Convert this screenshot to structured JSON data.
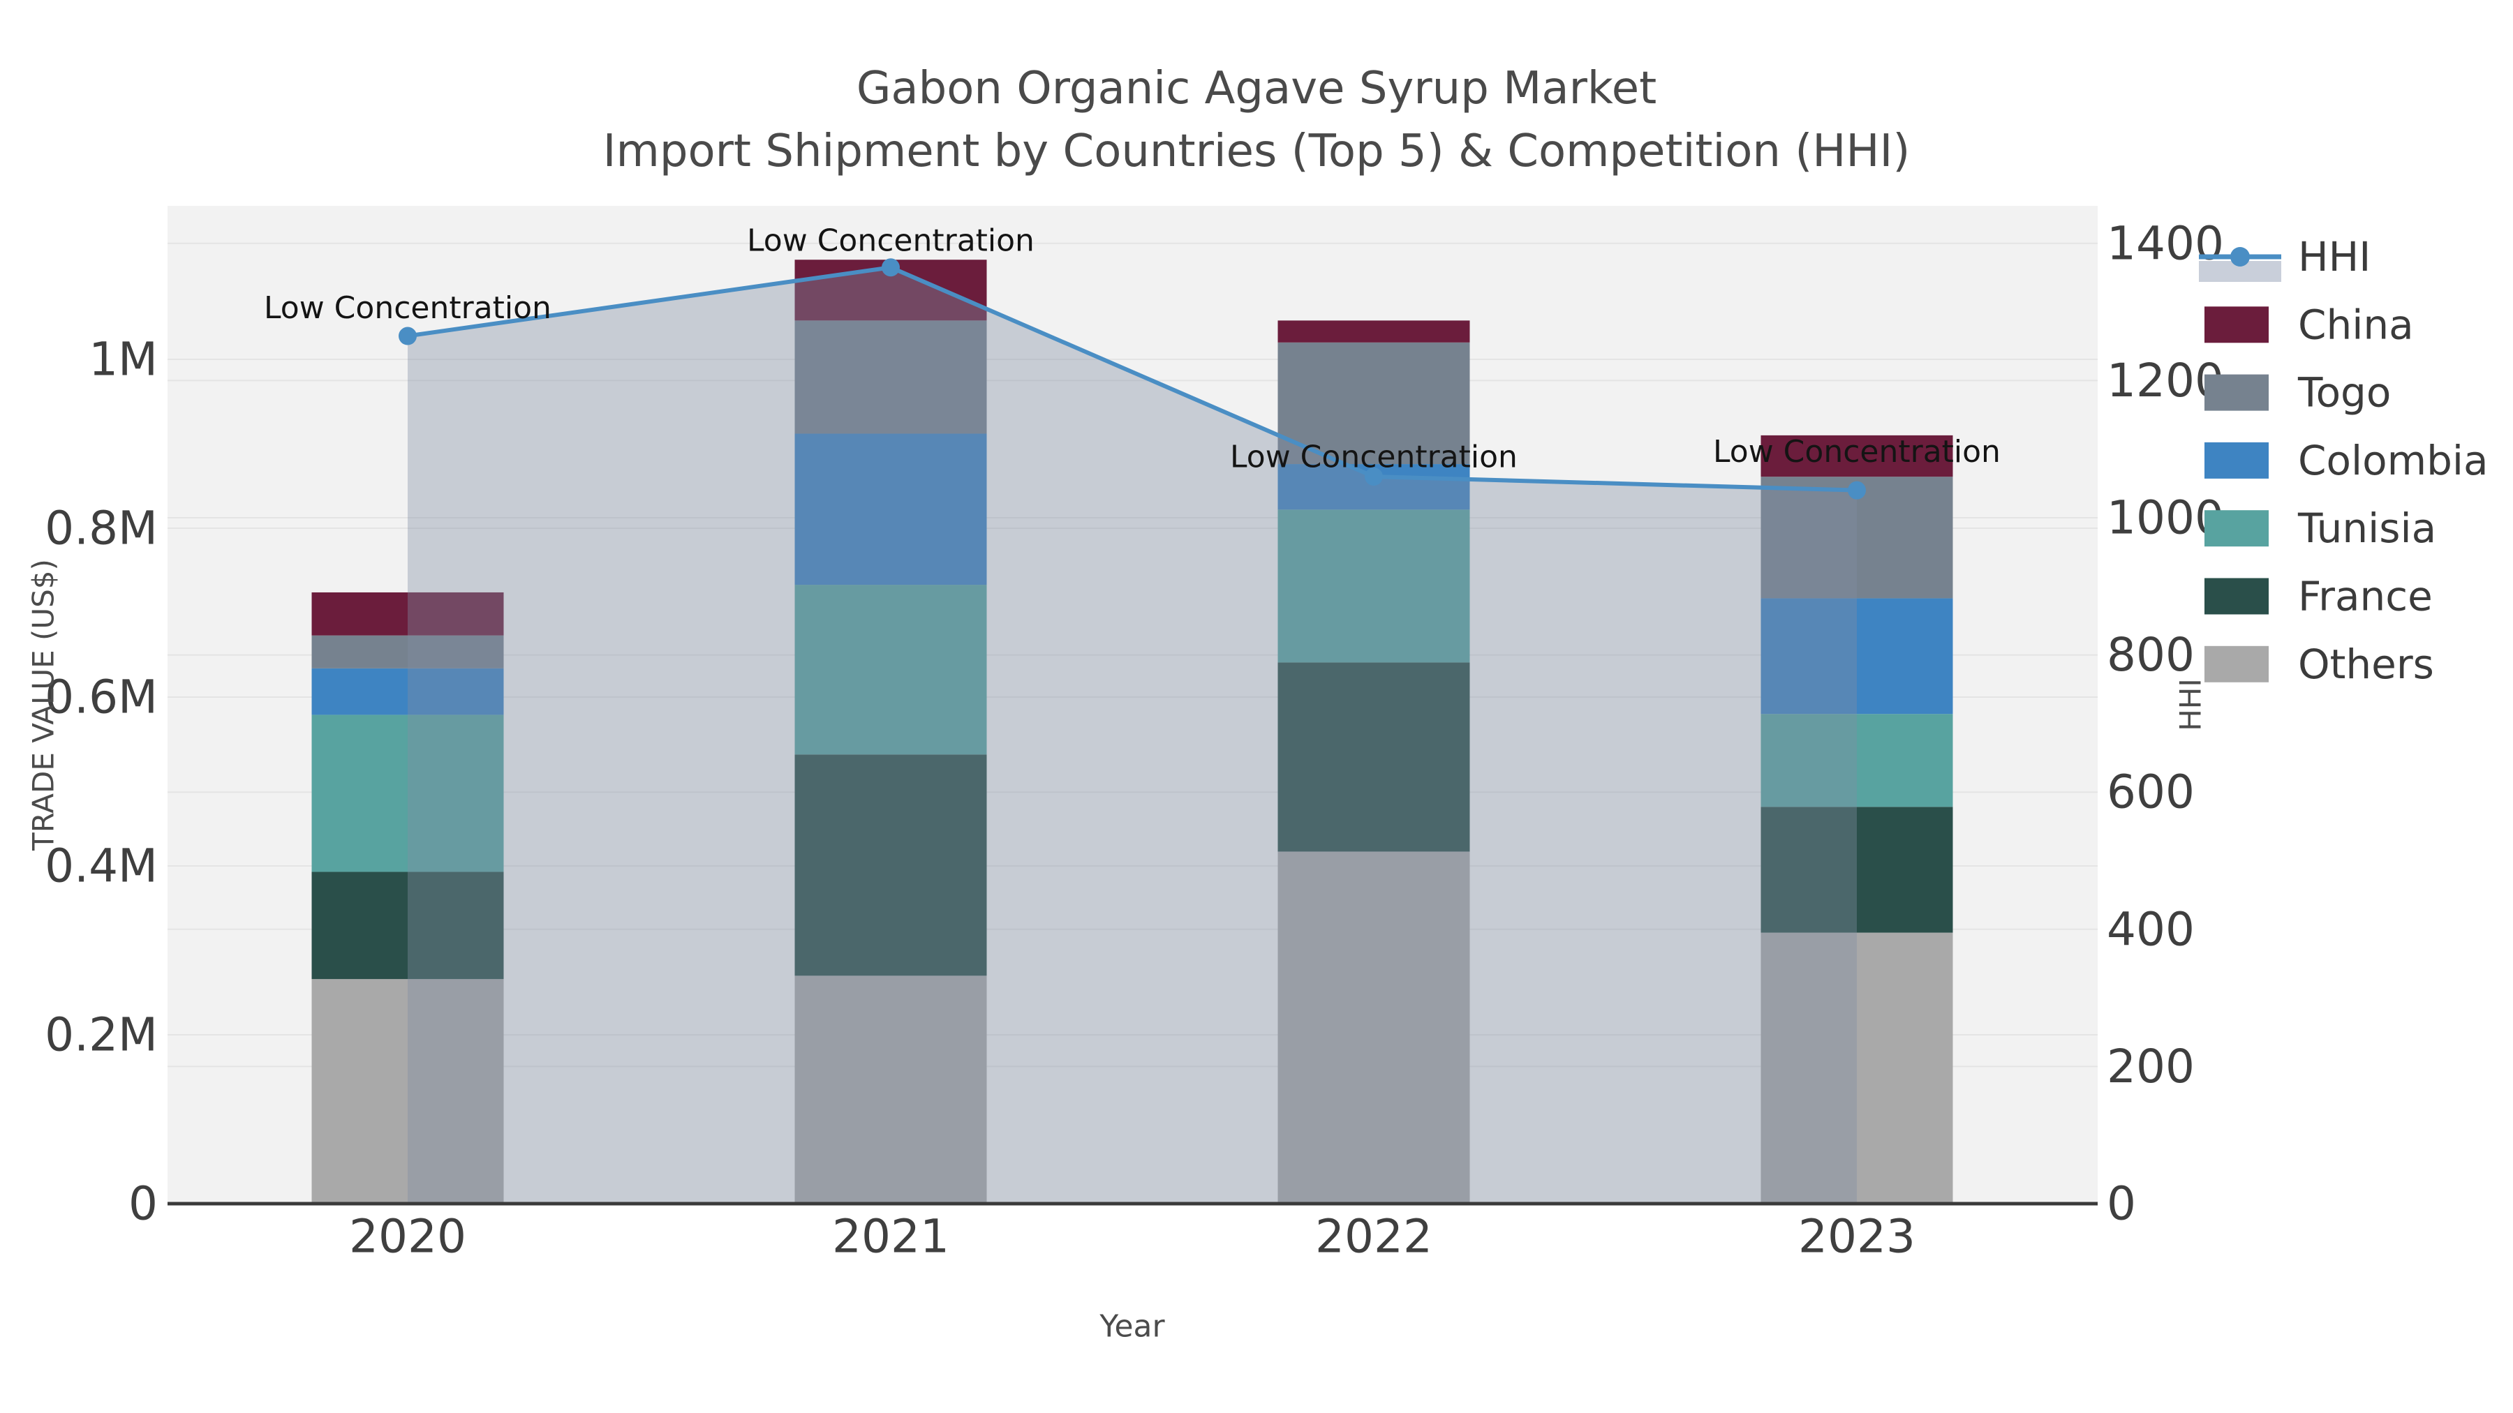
{
  "title": {
    "line1": "Gabon Organic Agave Syrup Market",
    "line2": "Import Shipment by Countries (Top 5) & Competition (HHI)"
  },
  "chart_data": {
    "type": "bar+line",
    "categories": [
      "2020",
      "2021",
      "2022",
      "2023"
    ],
    "x_label": "Year",
    "y_left": {
      "label": "TRADE VALUE (US$)",
      "tick_labels": [
        "0",
        "0.2M",
        "0.4M",
        "0.6M",
        "0.8M",
        "1M"
      ],
      "tick_values": [
        0,
        200000,
        400000,
        600000,
        800000,
        1000000
      ],
      "max": 1182000
    },
    "y_right": {
      "label": "HHI",
      "tick_values": [
        0,
        200,
        400,
        600,
        800,
        1000,
        1200,
        1400
      ],
      "max": 1455
    },
    "stack_bottom_to_top": [
      "Others",
      "France",
      "Tunisia",
      "Colombia",
      "Togo",
      "China"
    ],
    "series": [
      {
        "name": "China",
        "color": "#6b1d3c",
        "values": [
          51000,
          72000,
          26000,
          49000
        ]
      },
      {
        "name": "Togo",
        "color": "#76828f",
        "values": [
          39000,
          134000,
          144000,
          144000
        ]
      },
      {
        "name": "Colombia",
        "color": "#3e84c2",
        "values": [
          55000,
          179000,
          54000,
          137000
        ]
      },
      {
        "name": "Tunisia",
        "color": "#58a3a0",
        "values": [
          186000,
          201000,
          181000,
          110000
        ]
      },
      {
        "name": "France",
        "color": "#2a4f4a",
        "values": [
          127000,
          262000,
          224000,
          149000
        ]
      },
      {
        "name": "Others",
        "color": "#a9a9a9",
        "values": [
          266000,
          270000,
          417000,
          321000
        ]
      }
    ],
    "line_series": {
      "name": "HHI",
      "color": "#4a8ec4",
      "area_color": "rgba(128,142,164,0.38)",
      "legend_band_color": "#c9cfda",
      "values": [
        1265,
        1365,
        1060,
        1040
      ]
    },
    "annotations": [
      {
        "text": "Low Concentration",
        "dy": -40
      },
      {
        "text": "Low Concentration",
        "dy": -38
      },
      {
        "text": "Low Concentration",
        "dy": -28
      },
      {
        "text": "Low Concentration",
        "dy": -55
      }
    ],
    "legend_order": [
      "HHI",
      "China",
      "Togo",
      "Colombia",
      "Tunisia",
      "France",
      "Others"
    ],
    "legend_position": "right",
    "grid": true
  },
  "style": {
    "plot_bg": "#f2f2f2",
    "grid_color": "#e4e4e4",
    "spine_color": "#3a3a3a",
    "tick_color": "#3f3f3f",
    "label_color": "#4b4b4b",
    "legend_text_color": "#3b3b3b",
    "annotation_color": "#141414"
  }
}
